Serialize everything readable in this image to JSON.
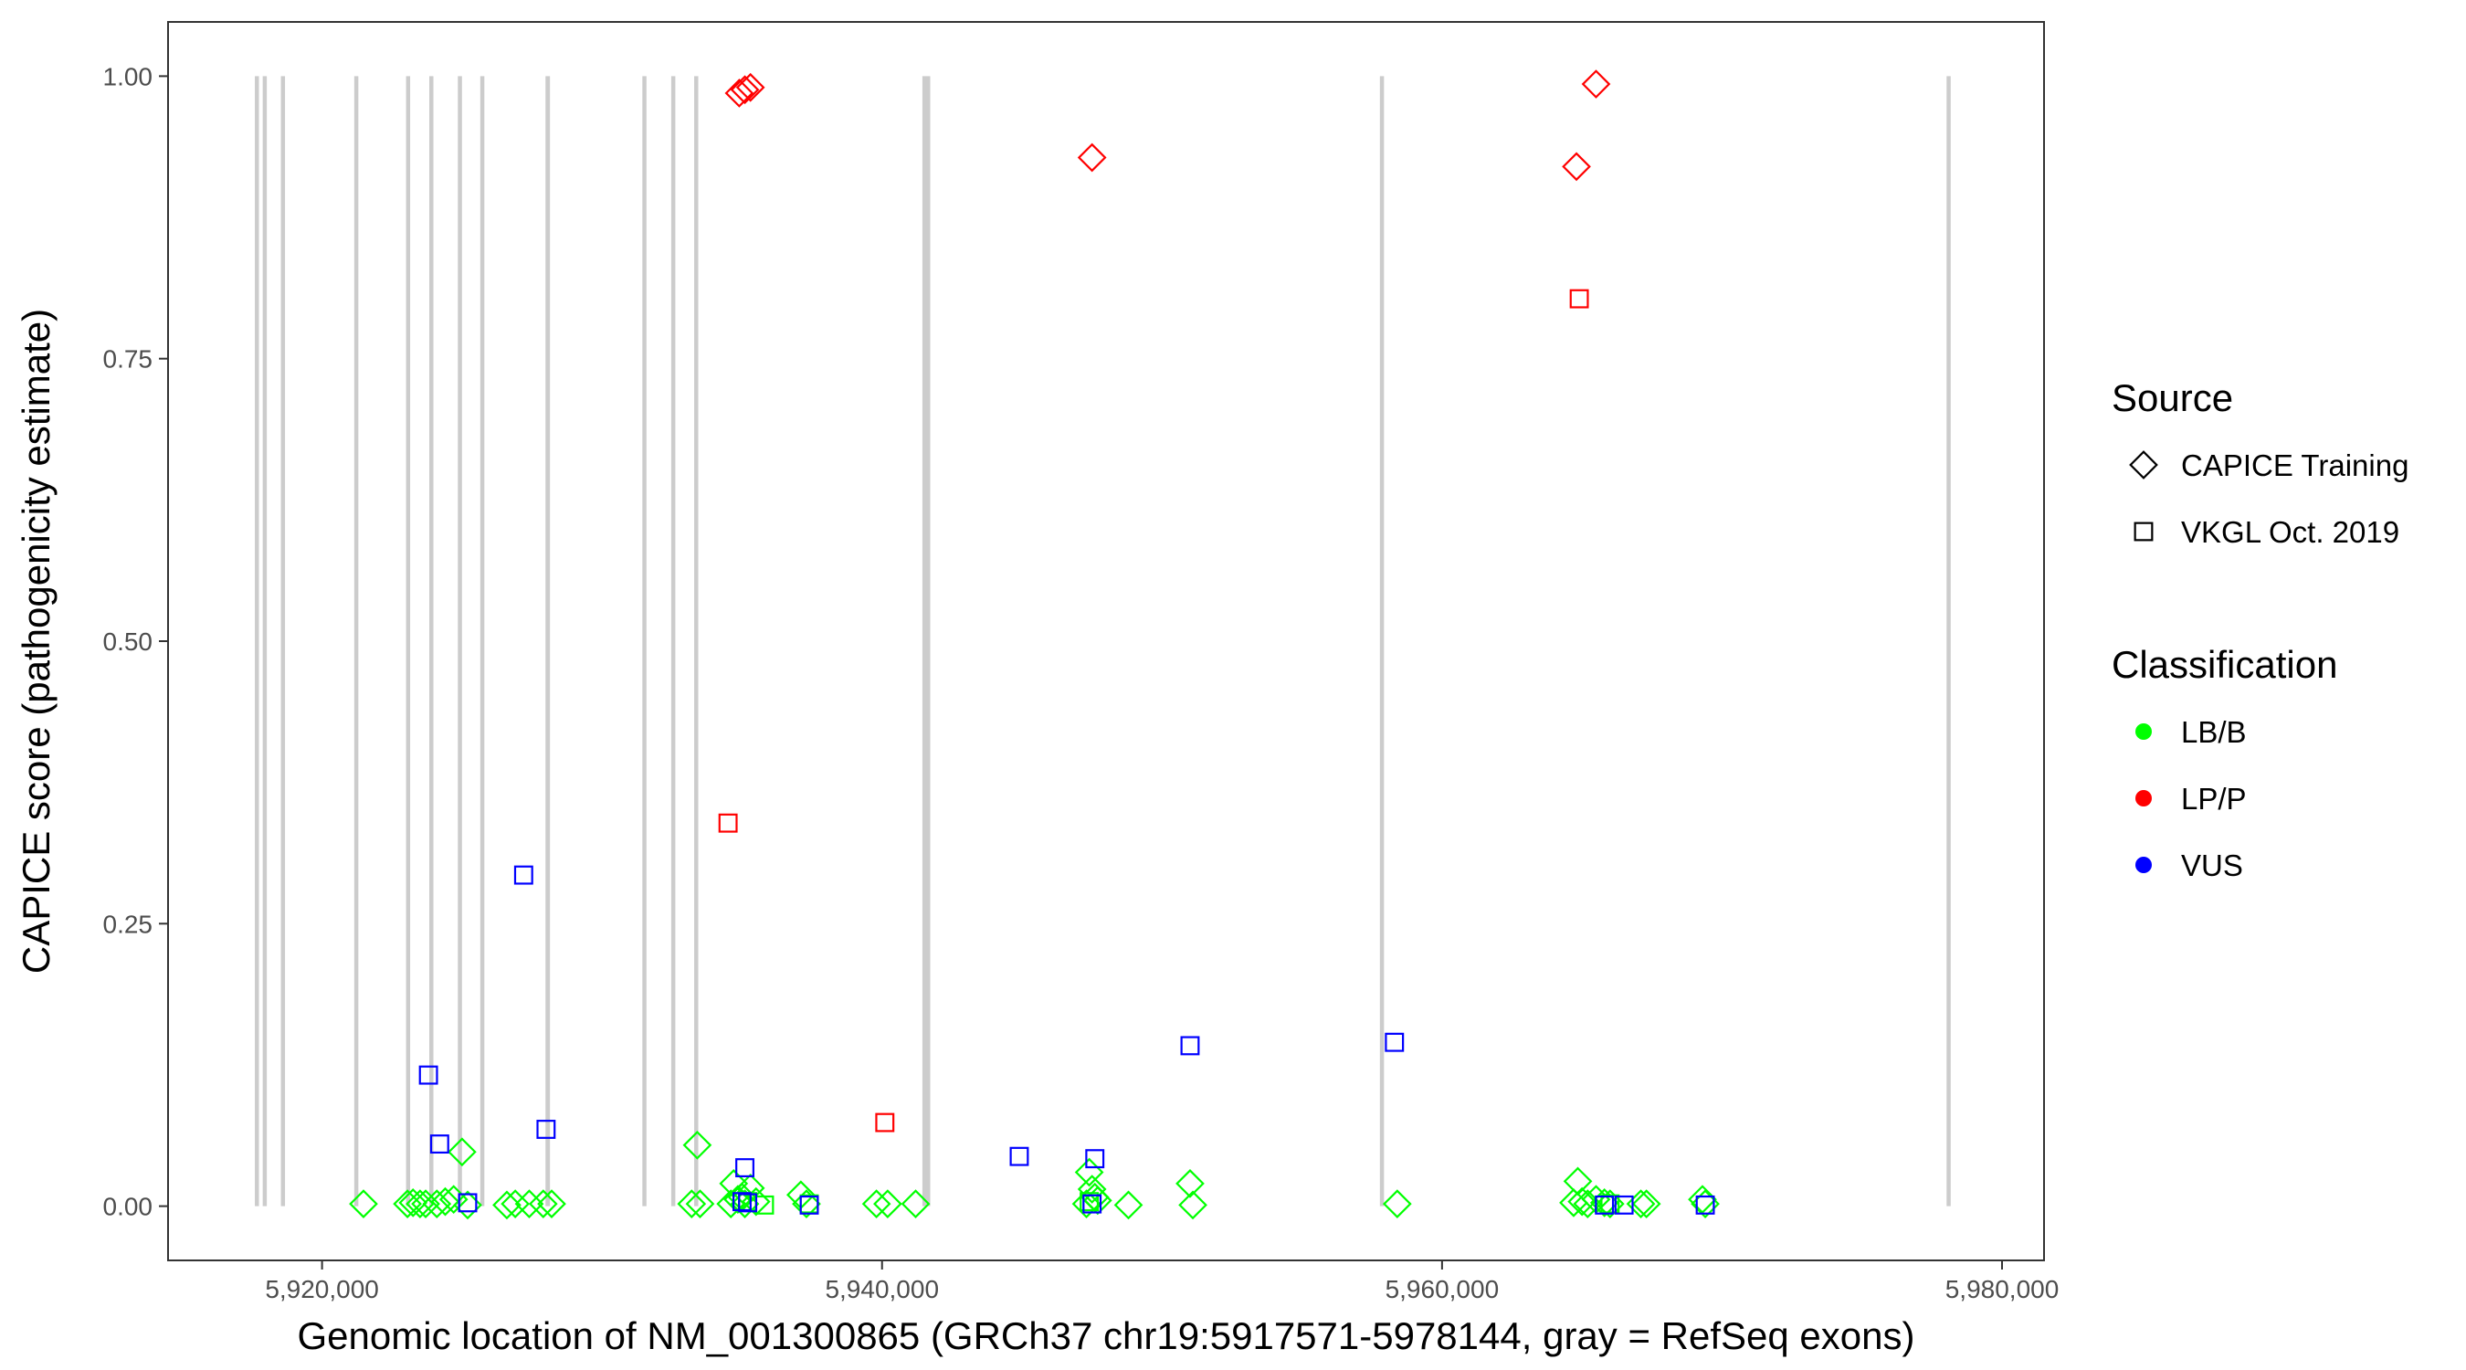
{
  "chart_data": {
    "type": "scatter",
    "xlabel": "Genomic location of NM_001300865 (GRCh37 chr19:5917571-5978144, gray = RefSeq exons)",
    "ylabel": "CAPICE score (pathogenicity estimate)",
    "xlim": [
      5914500,
      5981500
    ],
    "ylim": [
      -0.048,
      1.048
    ],
    "x_ticks": [
      {
        "value": 5920000,
        "label": "5,920,000"
      },
      {
        "value": 5940000,
        "label": "5,940,000"
      },
      {
        "value": 5960000,
        "label": "5,960,000"
      },
      {
        "value": 5980000,
        "label": "5,980,000"
      }
    ],
    "y_ticks": [
      {
        "value": 0.0,
        "label": "0.00"
      },
      {
        "value": 0.25,
        "label": "0.25"
      },
      {
        "value": 0.5,
        "label": "0.50"
      },
      {
        "value": 0.75,
        "label": "0.75"
      },
      {
        "value": 1.0,
        "label": "1.00"
      }
    ],
    "grid": false,
    "exon_color": "#cccccc",
    "exons": [
      [
        5917600,
        5917720
      ],
      [
        5917880,
        5918020
      ],
      [
        5918530,
        5918670
      ],
      [
        5921150,
        5921270
      ],
      [
        5923000,
        5923120
      ],
      [
        5923830,
        5923960
      ],
      [
        5924850,
        5924980
      ],
      [
        5925650,
        5925780
      ],
      [
        5927980,
        5928140
      ],
      [
        5931440,
        5931560
      ],
      [
        5932470,
        5932610
      ],
      [
        5933290,
        5933420
      ],
      [
        5941440,
        5941720
      ],
      [
        5957780,
        5957880
      ],
      [
        5978020,
        5978144
      ]
    ],
    "legends": [
      {
        "title": "Source",
        "entries": [
          {
            "label": "CAPICE Training",
            "shape": "diamond"
          },
          {
            "label": "VKGL Oct. 2019",
            "shape": "square"
          }
        ]
      },
      {
        "title": "Classification",
        "entries": [
          {
            "label": "LB/B",
            "color": "#00ff00"
          },
          {
            "label": "LP/P",
            "color": "#ff0000"
          },
          {
            "label": "VUS",
            "color": "#0000ff"
          }
        ]
      }
    ],
    "legend_position": "right",
    "series": [
      {
        "name": "LB/B",
        "source": "CAPICE Training",
        "shape": "diamond",
        "color": "#00ff00",
        "points": [
          [
            5921480,
            0.002
          ],
          [
            5923050,
            0.002
          ],
          [
            5923250,
            0.003
          ],
          [
            5923500,
            0.002
          ],
          [
            5923700,
            0.002
          ],
          [
            5924100,
            0.002
          ],
          [
            5924400,
            0.004
          ],
          [
            5924700,
            0.006
          ],
          [
            5925000,
            0.048
          ],
          [
            5925200,
            0.001
          ],
          [
            5926600,
            0.001
          ],
          [
            5926900,
            0.002
          ],
          [
            5927400,
            0.002
          ],
          [
            5927900,
            0.002
          ],
          [
            5928200,
            0.002
          ],
          [
            5933200,
            0.002
          ],
          [
            5933400,
            0.054
          ],
          [
            5933500,
            0.002
          ],
          [
            5934600,
            0.002
          ],
          [
            5934700,
            0.02
          ],
          [
            5934850,
            0.006
          ],
          [
            5935000,
            0.008
          ],
          [
            5935100,
            0.002
          ],
          [
            5935300,
            0.016
          ],
          [
            5935500,
            0.004
          ],
          [
            5937100,
            0.01
          ],
          [
            5937300,
            0.002
          ],
          [
            5939800,
            0.002
          ],
          [
            5940200,
            0.002
          ],
          [
            5941200,
            0.002
          ],
          [
            5947300,
            0.002
          ],
          [
            5947400,
            0.03
          ],
          [
            5947500,
            0.015
          ],
          [
            5947600,
            0.008
          ],
          [
            5947700,
            0.005
          ],
          [
            5948800,
            0.001
          ],
          [
            5951000,
            0.02
          ],
          [
            5951100,
            0.001
          ],
          [
            5958400,
            0.002
          ],
          [
            5964700,
            0.003
          ],
          [
            5964850,
            0.022
          ],
          [
            5965000,
            0.004
          ],
          [
            5965200,
            0.002
          ],
          [
            5965500,
            0.006
          ],
          [
            5965800,
            0.003
          ],
          [
            5966000,
            0.002
          ],
          [
            5967100,
            0.002
          ],
          [
            5967300,
            0.002
          ],
          [
            5969300,
            0.006
          ],
          [
            5969400,
            0.002
          ]
        ]
      },
      {
        "name": "LB/B",
        "source": "VKGL Oct. 2019",
        "shape": "square",
        "color": "#00ff00",
        "points": [
          [
            5935200,
            0.004
          ],
          [
            5935800,
            0.001
          ],
          [
            5937400,
            0.002
          ],
          [
            5947400,
            0.004
          ],
          [
            5966000,
            0.002
          ]
        ]
      },
      {
        "name": "LP/P",
        "source": "CAPICE Training",
        "shape": "diamond",
        "color": "#ff0000",
        "points": [
          [
            5934900,
            0.985
          ],
          [
            5935100,
            0.988
          ],
          [
            5935300,
            0.99
          ],
          [
            5947500,
            0.928
          ],
          [
            5964800,
            0.92
          ],
          [
            5965500,
            0.993
          ]
        ]
      },
      {
        "name": "LP/P",
        "source": "VKGL Oct. 2019",
        "shape": "square",
        "color": "#ff0000",
        "points": [
          [
            5934500,
            0.339
          ],
          [
            5940100,
            0.074
          ],
          [
            5964900,
            0.803
          ]
        ]
      },
      {
        "name": "VUS",
        "source": "VKGL Oct. 2019",
        "shape": "square",
        "color": "#0000ff",
        "points": [
          [
            5923800,
            0.116
          ],
          [
            5924200,
            0.055
          ],
          [
            5925200,
            0.003
          ],
          [
            5927200,
            0.293
          ],
          [
            5928000,
            0.068
          ],
          [
            5935100,
            0.034
          ],
          [
            5935000,
            0.004
          ],
          [
            5935200,
            0.003
          ],
          [
            5937400,
            0.001
          ],
          [
            5944900,
            0.044
          ],
          [
            5947600,
            0.042
          ],
          [
            5947500,
            0.002
          ],
          [
            5951000,
            0.142
          ],
          [
            5958300,
            0.145
          ],
          [
            5965800,
            0.001
          ],
          [
            5966500,
            0.001
          ],
          [
            5969400,
            0.001
          ]
        ]
      }
    ]
  }
}
